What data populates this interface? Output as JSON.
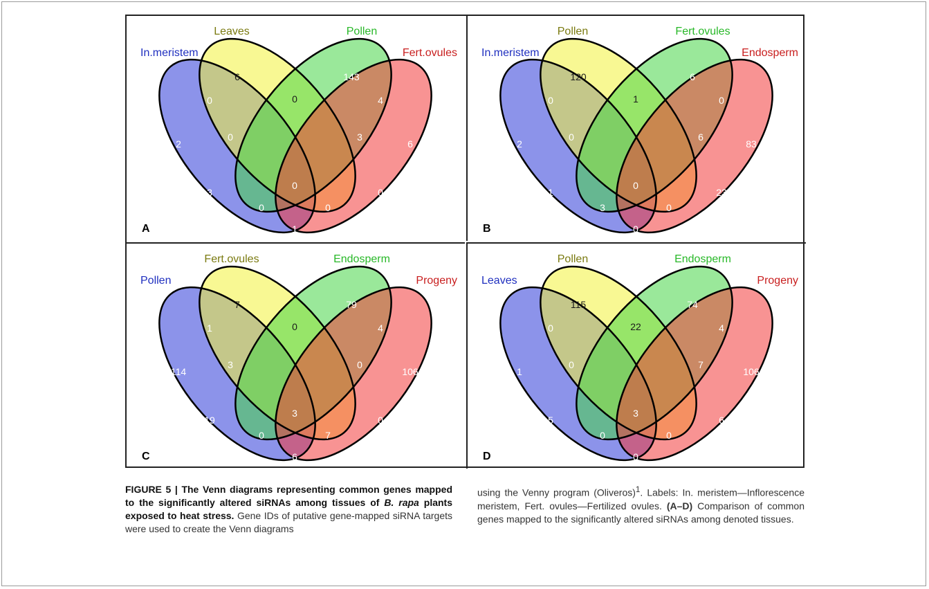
{
  "colors": {
    "blue": "#2d3bd9",
    "yellow": "#f2f23a",
    "green": "#47d547",
    "red": "#f23a3a",
    "label_blue": "#1f2fbf",
    "label_olive": "#7a7a10",
    "label_green": "#28b828",
    "label_red": "#c81e1e"
  },
  "panels": [
    {
      "letter": "A",
      "sets": [
        "In.meristem",
        "Leaves",
        "Pollen",
        "Fert.ovules"
      ],
      "counts": {
        "a": "2",
        "b": "6",
        "c": "143",
        "d": "6",
        "ab": "0",
        "bc": "0",
        "cd": "4",
        "ac": "3",
        "bd": "0",
        "ad": "1",
        "abc": "0",
        "bcd": "3",
        "acd": "0",
        "abd": "0",
        "abcd": "0"
      }
    },
    {
      "letter": "B",
      "sets": [
        "In.meristem",
        "Pollen",
        "Fert.ovules",
        "Endosperm"
      ],
      "counts": {
        "a": "2",
        "b": "120",
        "c": "6",
        "d": "83",
        "ab": "0",
        "bc": "1",
        "cd": "0",
        "ac": "1",
        "bd": "23",
        "ad": "0",
        "abc": "0",
        "bcd": "6",
        "acd": "0",
        "abd": "3",
        "abcd": "0"
      }
    },
    {
      "letter": "C",
      "sets": [
        "Pollen",
        "Fert.ovules",
        "Endosperm",
        "Progeny"
      ],
      "counts": {
        "a": "114",
        "b": "7",
        "c": "79",
        "d": "106",
        "ab": "1",
        "bc": "0",
        "cd": "4",
        "ac": "19",
        "bd": "0",
        "ad": "6",
        "abc": "3",
        "bcd": "0",
        "acd": "7",
        "abd": "0",
        "abcd": "3"
      }
    },
    {
      "letter": "D",
      "sets": [
        "Leaves",
        "Pollen",
        "Endosperm",
        "Progeny"
      ],
      "counts": {
        "a": "1",
        "b": "115",
        "c": "74",
        "d": "106",
        "ab": "0",
        "bc": "22",
        "cd": "4",
        "ac": "5",
        "bd": "6",
        "ad": "0",
        "abc": "0",
        "bcd": "7",
        "acd": "0",
        "abd": "0",
        "abcd": "3"
      }
    }
  ],
  "caption": {
    "title_part1": "FIGURE 5 | The Venn diagrams representing common genes mapped to the significantly altered siRNAs among tissues of ",
    "title_species": "B. rapa",
    "title_part2": " plants exposed to heat stress.",
    "text_part1": " Gene IDs of putative gene-mapped siRNA targets were used to create the Venn diagrams",
    "text_col2_part1": "using the Venny program (Oliveros)",
    "footnote_mark": "1",
    "text_col2_part2": ". Labels: In. meristem—Inflorescence meristem, Fert. ovules—Fertilized ovules. ",
    "panel_range": "(A–D)",
    "text_col2_part3": " Comparison of common genes mapped to the significantly altered siRNAs among denoted tissues."
  }
}
